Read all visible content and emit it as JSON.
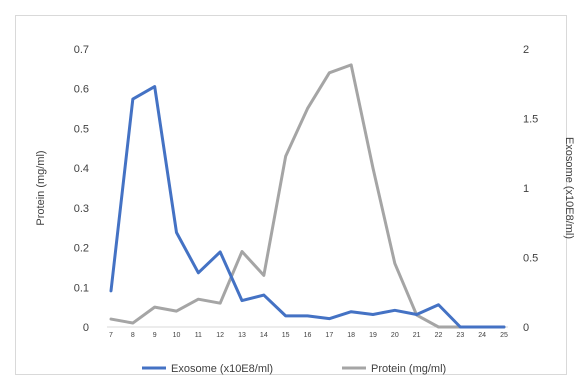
{
  "chart_data": {
    "type": "line",
    "x": [
      "7",
      "8",
      "9",
      "10",
      "11",
      "12",
      "13",
      "14",
      "15",
      "16",
      "17",
      "18",
      "19",
      "20",
      "21",
      "22",
      "23",
      "24",
      "25"
    ],
    "series": [
      {
        "name": "Exosome (x10E8/ml)",
        "axis": "right",
        "color": "#4472c4",
        "values": [
          0.26,
          1.64,
          1.73,
          0.68,
          0.39,
          0.54,
          0.19,
          0.23,
          0.08,
          0.08,
          0.06,
          0.11,
          0.09,
          0.12,
          0.09,
          0.16,
          0.0,
          0.0,
          0.0
        ]
      },
      {
        "name": "Protein (mg/ml)",
        "axis": "left",
        "color": "#a5a5a5",
        "values": [
          0.02,
          0.01,
          0.05,
          0.04,
          0.07,
          0.06,
          0.19,
          0.13,
          0.43,
          0.55,
          0.64,
          0.66,
          0.4,
          0.16,
          0.03,
          0.0,
          0.0,
          0.0,
          0.0
        ]
      }
    ],
    "y_left": {
      "label": "Protein (mg/ml)",
      "ylim": [
        0,
        0.7
      ],
      "ticks": [
        0,
        0.1,
        0.2,
        0.3,
        0.4,
        0.5,
        0.6,
        0.7
      ],
      "tick_labels": [
        "0",
        "0.1",
        "0.2",
        "0.3",
        "0.4",
        "0.5",
        "0.6",
        "0.7"
      ]
    },
    "y_right": {
      "label": "Exosome (x10E8/ml)",
      "ylim": [
        0,
        2
      ],
      "ticks": [
        0,
        0.5,
        1,
        1.5,
        2
      ],
      "tick_labels": [
        "0",
        "0.5",
        "1",
        "1.5",
        "2"
      ]
    },
    "grid": false,
    "legend_position": "bottom"
  }
}
